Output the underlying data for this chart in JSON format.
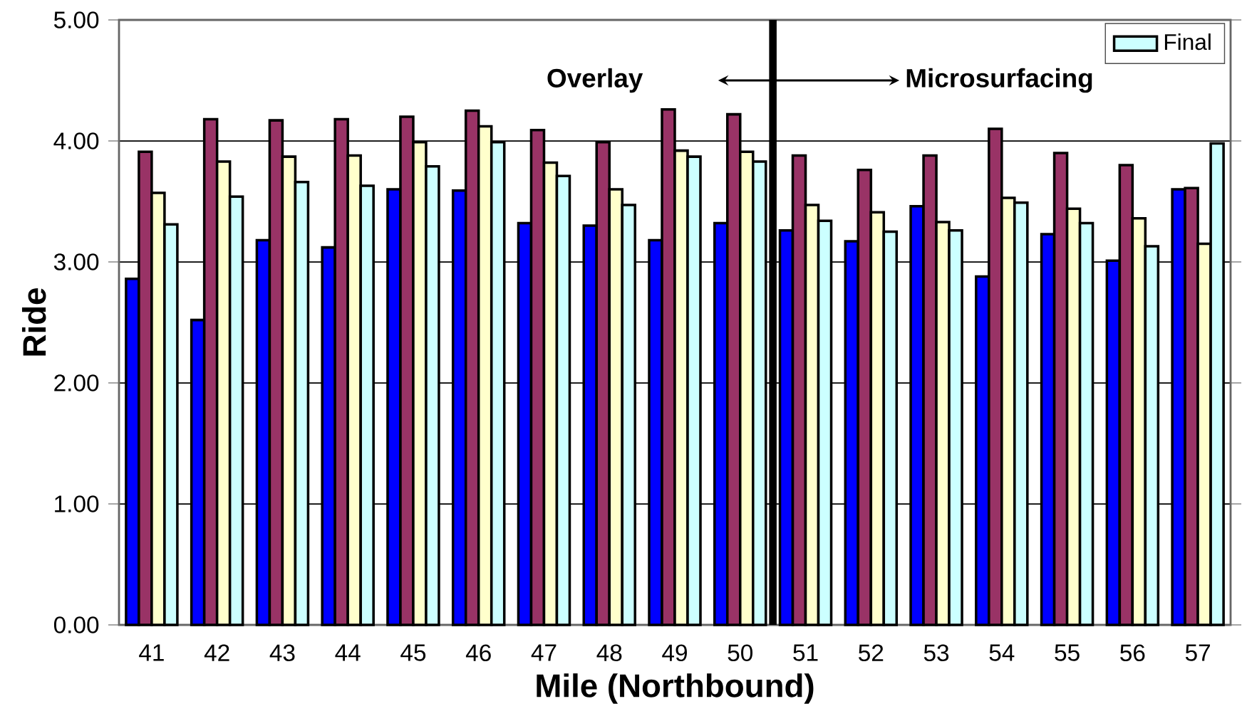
{
  "chart_data": {
    "type": "bar",
    "xlabel": "Mile (Northbound)",
    "ylabel": "Ride",
    "x": [
      41,
      42,
      43,
      44,
      45,
      46,
      47,
      48,
      49,
      50,
      51,
      52,
      53,
      54,
      55,
      56,
      57
    ],
    "xlim": [
      40.5,
      57.5
    ],
    "xticks": [
      41,
      42,
      43,
      44,
      45,
      46,
      47,
      48,
      49,
      50,
      51,
      52,
      53,
      54,
      55,
      56,
      57
    ],
    "series": [
      {
        "color": "#0000ff",
        "values": [
          2.86,
          2.52,
          3.18,
          3.12,
          3.6,
          3.59,
          3.32,
          3.3,
          3.18,
          3.32,
          3.26,
          3.17,
          3.46,
          2.88,
          3.23,
          3.01,
          3.6
        ]
      },
      {
        "color": "#993366",
        "values": [
          3.91,
          4.18,
          4.17,
          4.18,
          4.2,
          4.25,
          4.09,
          3.99,
          4.26,
          4.22,
          3.88,
          3.76,
          3.88,
          4.1,
          3.9,
          3.8,
          3.61
        ]
      },
      {
        "color": "#ffffcc",
        "values": [
          3.57,
          3.83,
          3.87,
          3.88,
          3.99,
          4.12,
          3.82,
          3.6,
          3.92,
          3.91,
          3.47,
          3.41,
          3.33,
          3.53,
          3.44,
          3.36,
          3.15
        ]
      },
      {
        "name": "Final",
        "color": "#ccffff",
        "values": [
          3.31,
          3.54,
          3.66,
          3.63,
          3.79,
          3.99,
          3.71,
          3.47,
          3.87,
          3.83,
          3.34,
          3.25,
          3.26,
          3.49,
          3.32,
          3.13,
          3.98
        ]
      }
    ],
    "ylim": [
      0,
      5
    ],
    "yticks": [
      {
        "value": 0,
        "label": "0.00"
      },
      {
        "value": 1,
        "label": "1.00"
      },
      {
        "value": 2,
        "label": "2.00"
      },
      {
        "value": 3,
        "label": "3.00"
      },
      {
        "value": 4,
        "label": "4.00"
      },
      {
        "value": 5,
        "label": "5.00"
      }
    ],
    "grid": "y",
    "legend": "top right",
    "ref_lines": [
      {
        "axis": "x",
        "value": 50.5,
        "color": "#000000"
      }
    ],
    "annotations": [
      "Overlay",
      "Microsurfacing"
    ]
  }
}
